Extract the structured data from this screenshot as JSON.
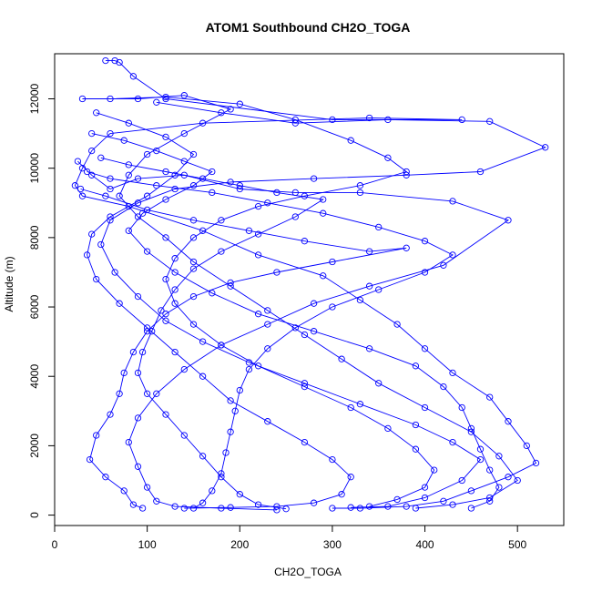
{
  "chart_data": {
    "type": "scatter",
    "title": "ATOM1 Southbound CH2O_TOGA",
    "xlabel": "CH2O_TOGA",
    "ylabel": "Altitude (m)",
    "xlim": [
      0,
      550
    ],
    "ylim": [
      -300,
      13300
    ],
    "x_ticks": [
      0,
      100,
      200,
      300,
      400,
      500
    ],
    "y_ticks": [
      0,
      2000,
      4000,
      6000,
      8000,
      10000,
      12000
    ],
    "marker": "open-circle",
    "connected": true,
    "series_color": "#0000ff",
    "series": [
      {
        "values": [
          [
            55,
            13100
          ],
          [
            65,
            13100
          ],
          [
            70,
            13050
          ],
          [
            85,
            12650
          ],
          [
            120,
            12000
          ],
          [
            300,
            11400
          ],
          [
            440,
            11400
          ],
          [
            340,
            11450
          ],
          [
            160,
            11300
          ],
          [
            60,
            11000
          ],
          [
            40,
            10500
          ],
          [
            30,
            10000
          ],
          [
            22,
            9500
          ],
          [
            30,
            9200
          ],
          [
            80,
            8900
          ],
          [
            160,
            8200
          ],
          [
            220,
            7500
          ],
          [
            290,
            6900
          ],
          [
            330,
            6200
          ],
          [
            370,
            5500
          ],
          [
            400,
            4800
          ],
          [
            430,
            4100
          ],
          [
            470,
            3400
          ],
          [
            490,
            2700
          ],
          [
            510,
            2000
          ],
          [
            520,
            1500
          ],
          [
            490,
            1100
          ],
          [
            450,
            700
          ],
          [
            420,
            400
          ],
          [
            380,
            250
          ],
          [
            330,
            200
          ],
          [
            300,
            200
          ]
        ]
      },
      {
        "values": [
          [
            110,
            11900
          ],
          [
            180,
            11600
          ],
          [
            260,
            11300
          ],
          [
            360,
            11400
          ],
          [
            470,
            11350
          ],
          [
            530,
            10600
          ],
          [
            460,
            9900
          ],
          [
            380,
            9800
          ],
          [
            280,
            9700
          ],
          [
            190,
            9600
          ],
          [
            130,
            9400
          ],
          [
            90,
            9000
          ],
          [
            60,
            8500
          ],
          [
            50,
            7800
          ],
          [
            65,
            7000
          ],
          [
            90,
            6300
          ],
          [
            120,
            5600
          ],
          [
            160,
            5000
          ],
          [
            210,
            4400
          ],
          [
            270,
            3800
          ],
          [
            330,
            3200
          ],
          [
            390,
            2600
          ],
          [
            430,
            2100
          ],
          [
            460,
            1600
          ],
          [
            440,
            1000
          ],
          [
            400,
            500
          ],
          [
            360,
            250
          ],
          [
            320,
            220
          ]
        ]
      },
      {
        "values": [
          [
            25,
            10200
          ],
          [
            40,
            9800
          ],
          [
            60,
            9400
          ],
          [
            90,
            9700
          ],
          [
            140,
            9800
          ],
          [
            200,
            9400
          ],
          [
            260,
            9300
          ],
          [
            330,
            9300
          ],
          [
            430,
            9050
          ],
          [
            490,
            8500
          ],
          [
            420,
            7200
          ],
          [
            340,
            6600
          ],
          [
            280,
            6100
          ],
          [
            230,
            5500
          ],
          [
            180,
            4900
          ],
          [
            140,
            4200
          ],
          [
            110,
            3500
          ],
          [
            90,
            2800
          ],
          [
            80,
            2100
          ],
          [
            90,
            1400
          ],
          [
            100,
            800
          ],
          [
            110,
            400
          ],
          [
            130,
            250
          ],
          [
            180,
            200
          ],
          [
            240,
            150
          ]
        ]
      },
      {
        "values": [
          [
            30,
            12000
          ],
          [
            90,
            12000
          ],
          [
            140,
            12100
          ],
          [
            190,
            11700
          ],
          [
            140,
            11000
          ],
          [
            100,
            10400
          ],
          [
            80,
            9800
          ],
          [
            70,
            9200
          ],
          [
            90,
            8600
          ],
          [
            120,
            8000
          ],
          [
            150,
            7300
          ],
          [
            190,
            6600
          ],
          [
            230,
            5900
          ],
          [
            270,
            5200
          ],
          [
            310,
            4500
          ],
          [
            350,
            3800
          ],
          [
            400,
            3100
          ],
          [
            450,
            2400
          ],
          [
            480,
            1700
          ],
          [
            500,
            1000
          ],
          [
            470,
            500
          ],
          [
            430,
            300
          ],
          [
            390,
            200
          ]
        ]
      },
      {
        "values": [
          [
            45,
            11600
          ],
          [
            80,
            11300
          ],
          [
            120,
            10900
          ],
          [
            150,
            10400
          ],
          [
            130,
            9800
          ],
          [
            100,
            9200
          ],
          [
            60,
            8600
          ],
          [
            40,
            8100
          ],
          [
            35,
            7500
          ],
          [
            45,
            6800
          ],
          [
            70,
            6100
          ],
          [
            100,
            5400
          ],
          [
            130,
            4700
          ],
          [
            160,
            4000
          ],
          [
            190,
            3300
          ],
          [
            230,
            2700
          ],
          [
            270,
            2100
          ],
          [
            300,
            1600
          ],
          [
            320,
            1100
          ],
          [
            310,
            600
          ],
          [
            280,
            350
          ],
          [
            240,
            250
          ],
          [
            190,
            220
          ],
          [
            140,
            200
          ]
        ]
      },
      {
        "values": [
          [
            28,
            9400
          ],
          [
            55,
            9200
          ],
          [
            100,
            8800
          ],
          [
            150,
            8500
          ],
          [
            210,
            8200
          ],
          [
            270,
            7900
          ],
          [
            340,
            7600
          ],
          [
            380,
            7700
          ],
          [
            300,
            7300
          ],
          [
            240,
            7000
          ],
          [
            190,
            6700
          ],
          [
            150,
            6300
          ],
          [
            120,
            5800
          ],
          [
            100,
            5300
          ],
          [
            85,
            4700
          ],
          [
            75,
            4100
          ],
          [
            70,
            3500
          ],
          [
            60,
            2900
          ],
          [
            45,
            2300
          ],
          [
            38,
            1600
          ],
          [
            55,
            1100
          ],
          [
            75,
            700
          ],
          [
            85,
            300
          ],
          [
            95,
            200
          ]
        ]
      },
      {
        "values": [
          [
            60,
            12000
          ],
          [
            120,
            12050
          ],
          [
            200,
            11850
          ],
          [
            260,
            11400
          ],
          [
            320,
            10800
          ],
          [
            360,
            10300
          ],
          [
            380,
            9900
          ],
          [
            330,
            9500
          ],
          [
            270,
            9200
          ],
          [
            220,
            8900
          ],
          [
            180,
            8500
          ],
          [
            150,
            8000
          ],
          [
            130,
            7400
          ],
          [
            120,
            6800
          ],
          [
            130,
            6100
          ],
          [
            150,
            5500
          ],
          [
            180,
            4900
          ],
          [
            220,
            4300
          ],
          [
            270,
            3700
          ],
          [
            320,
            3100
          ],
          [
            360,
            2500
          ],
          [
            390,
            1900
          ],
          [
            410,
            1300
          ],
          [
            400,
            800
          ],
          [
            370,
            450
          ],
          [
            340,
            250
          ]
        ]
      },
      {
        "values": [
          [
            35,
            9900
          ],
          [
            60,
            9700
          ],
          [
            110,
            9500
          ],
          [
            170,
            9300
          ],
          [
            230,
            9000
          ],
          [
            290,
            8700
          ],
          [
            350,
            8300
          ],
          [
            400,
            7900
          ],
          [
            430,
            7500
          ],
          [
            400,
            7000
          ],
          [
            350,
            6500
          ],
          [
            300,
            6000
          ],
          [
            260,
            5400
          ],
          [
            230,
            4800
          ],
          [
            210,
            4200
          ],
          [
            200,
            3600
          ],
          [
            195,
            3000
          ],
          [
            190,
            2400
          ],
          [
            185,
            1800
          ],
          [
            180,
            1200
          ],
          [
            170,
            700
          ],
          [
            160,
            350
          ],
          [
            150,
            200
          ]
        ]
      },
      {
        "values": [
          [
            40,
            11000
          ],
          [
            75,
            10800
          ],
          [
            110,
            10500
          ],
          [
            140,
            10200
          ],
          [
            170,
            9900
          ],
          [
            150,
            9500
          ],
          [
            120,
            9100
          ],
          [
            95,
            8700
          ],
          [
            80,
            8200
          ],
          [
            100,
            7600
          ],
          [
            130,
            7000
          ],
          [
            170,
            6400
          ],
          [
            220,
            5800
          ],
          [
            280,
            5300
          ],
          [
            340,
            4800
          ],
          [
            390,
            4300
          ],
          [
            420,
            3700
          ],
          [
            440,
            3100
          ],
          [
            450,
            2500
          ],
          [
            460,
            1900
          ],
          [
            470,
            1300
          ],
          [
            480,
            800
          ],
          [
            470,
            400
          ],
          [
            450,
            200
          ]
        ]
      },
      {
        "values": [
          [
            50,
            10300
          ],
          [
            80,
            10100
          ],
          [
            120,
            9900
          ],
          [
            160,
            9700
          ],
          [
            200,
            9500
          ],
          [
            240,
            9300
          ],
          [
            290,
            9100
          ],
          [
            260,
            8600
          ],
          [
            220,
            8100
          ],
          [
            180,
            7600
          ],
          [
            150,
            7100
          ],
          [
            130,
            6500
          ],
          [
            115,
            5900
          ],
          [
            105,
            5300
          ],
          [
            95,
            4700
          ],
          [
            90,
            4100
          ],
          [
            100,
            3500
          ],
          [
            120,
            2900
          ],
          [
            140,
            2300
          ],
          [
            160,
            1700
          ],
          [
            180,
            1100
          ],
          [
            200,
            600
          ],
          [
            220,
            300
          ],
          [
            250,
            180
          ]
        ]
      }
    ]
  }
}
